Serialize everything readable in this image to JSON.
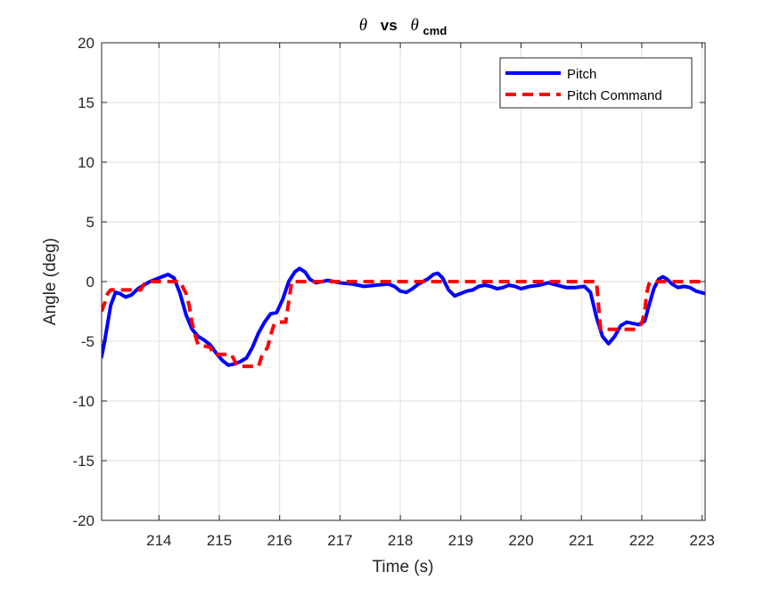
{
  "chart_data": {
    "type": "line",
    "title": {
      "symbol_left": "θ",
      "vs": "vs",
      "symbol_right": "θ",
      "subscript": "cmd"
    },
    "xlabel": "Time (s)",
    "ylabel": "Angle (deg)",
    "xlim": [
      213.05,
      223.05
    ],
    "ylim": [
      -20,
      20
    ],
    "xticks": [
      214,
      215,
      216,
      217,
      218,
      219,
      220,
      221,
      222,
      223
    ],
    "yticks": [
      -20,
      -15,
      -10,
      -5,
      0,
      5,
      10,
      15,
      20
    ],
    "grid": true,
    "legend_position": "top-right",
    "series": [
      {
        "name": "Pitch",
        "color": "#0000ff",
        "style": "solid",
        "x": [
          213.05,
          213.1,
          213.2,
          213.28,
          213.35,
          213.45,
          213.55,
          213.65,
          213.75,
          213.85,
          213.95,
          214.05,
          214.15,
          214.25,
          214.35,
          214.45,
          214.55,
          214.65,
          214.75,
          214.85,
          214.95,
          215.05,
          215.15,
          215.25,
          215.35,
          215.45,
          215.55,
          215.65,
          215.75,
          215.85,
          215.95,
          216.05,
          216.15,
          216.25,
          216.33,
          216.42,
          216.5,
          216.6,
          216.7,
          216.8,
          216.9,
          217.0,
          217.2,
          217.4,
          217.6,
          217.8,
          217.9,
          218.0,
          218.1,
          218.2,
          218.3,
          218.45,
          218.55,
          218.62,
          218.7,
          218.8,
          218.9,
          219.0,
          219.1,
          219.2,
          219.3,
          219.4,
          219.5,
          219.6,
          219.7,
          219.8,
          219.9,
          220.0,
          220.15,
          220.3,
          220.45,
          220.6,
          220.75,
          220.9,
          221.05,
          221.15,
          221.25,
          221.35,
          221.45,
          221.55,
          221.65,
          221.75,
          221.85,
          221.95,
          222.05,
          222.12,
          222.2,
          222.28,
          222.35,
          222.42,
          222.5,
          222.6,
          222.7,
          222.8,
          222.9,
          223.05
        ],
        "y": [
          -6.3,
          -5.0,
          -2.0,
          -0.9,
          -1.0,
          -1.3,
          -1.1,
          -0.6,
          -0.3,
          0.0,
          0.2,
          0.4,
          0.6,
          0.3,
          -1.0,
          -2.8,
          -4.0,
          -4.6,
          -4.9,
          -5.3,
          -6.0,
          -6.6,
          -7.0,
          -6.9,
          -6.7,
          -6.4,
          -5.5,
          -4.3,
          -3.4,
          -2.7,
          -2.6,
          -1.5,
          0.0,
          0.8,
          1.1,
          0.8,
          0.2,
          -0.1,
          0.0,
          0.1,
          0.0,
          -0.1,
          -0.2,
          -0.4,
          -0.3,
          -0.2,
          -0.4,
          -0.8,
          -0.9,
          -0.6,
          -0.2,
          0.2,
          0.6,
          0.7,
          0.3,
          -0.7,
          -1.2,
          -1.0,
          -0.8,
          -0.7,
          -0.4,
          -0.3,
          -0.4,
          -0.6,
          -0.5,
          -0.3,
          -0.4,
          -0.6,
          -0.4,
          -0.3,
          -0.1,
          -0.3,
          -0.5,
          -0.5,
          -0.4,
          -0.9,
          -3.0,
          -4.6,
          -5.2,
          -4.6,
          -3.7,
          -3.4,
          -3.5,
          -3.6,
          -3.3,
          -2.0,
          -0.6,
          0.2,
          0.4,
          0.2,
          -0.2,
          -0.5,
          -0.4,
          -0.5,
          -0.8,
          -1.0
        ]
      },
      {
        "name": "Pitch Command",
        "color": "#ff0000",
        "style": "dashed",
        "x": [
          213.05,
          213.1,
          213.15,
          213.2,
          213.7,
          213.73,
          213.77,
          213.8,
          214.35,
          214.45,
          214.5,
          214.55,
          214.6,
          214.65,
          214.85,
          214.9,
          215.2,
          215.3,
          215.65,
          215.7,
          215.8,
          215.85,
          215.9,
          215.95,
          216.1,
          216.2,
          221.25,
          221.3,
          221.32,
          221.6,
          221.75,
          221.9,
          222.0,
          222.05,
          222.08,
          222.12,
          222.15,
          222.3,
          223.05
        ],
        "y": [
          -2.5,
          -1.8,
          -1.0,
          -0.7,
          -0.7,
          -0.4,
          -0.1,
          0.0,
          0.0,
          -1.0,
          -2.0,
          -3.5,
          -4.5,
          -5.3,
          -5.5,
          -6.1,
          -6.1,
          -7.1,
          -7.1,
          -6.3,
          -5.5,
          -4.5,
          -3.7,
          -3.4,
          -3.4,
          0.0,
          0.0,
          -3.0,
          -4.0,
          -4.0,
          -4.0,
          -4.0,
          -3.5,
          -2.5,
          -1.0,
          -0.2,
          0.0,
          0.0,
          0.0
        ]
      }
    ]
  }
}
